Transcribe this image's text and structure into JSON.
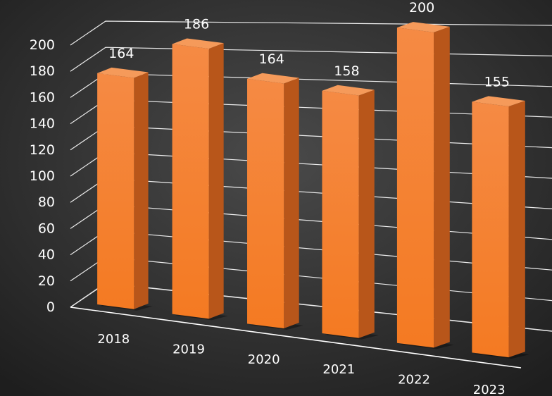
{
  "chart_data": {
    "type": "bar",
    "style": "3d-column",
    "title": "",
    "xlabel": "",
    "ylabel": "",
    "categories": [
      "2018",
      "2019",
      "2020",
      "2021",
      "2022",
      "2023"
    ],
    "values": [
      164,
      186,
      164,
      158,
      200,
      155
    ],
    "data_labels": [
      "164",
      "186",
      "164",
      "158",
      "200",
      "155"
    ],
    "ylim": [
      0,
      200
    ],
    "yticks": [
      0,
      20,
      40,
      60,
      80,
      100,
      120,
      140,
      160,
      180,
      200
    ],
    "ytick_labels": [
      "0",
      "20",
      "40",
      "60",
      "80",
      "100",
      "120",
      "140",
      "160",
      "180",
      "200"
    ],
    "grid": true,
    "legend": "none",
    "colors": {
      "background": "#2a2a2a",
      "bar_front": "#f47a22",
      "bar_side": "#b8561a",
      "bar_top": "#f59a5a",
      "gridline": "#ffffff",
      "text": "#ffffff"
    }
  }
}
